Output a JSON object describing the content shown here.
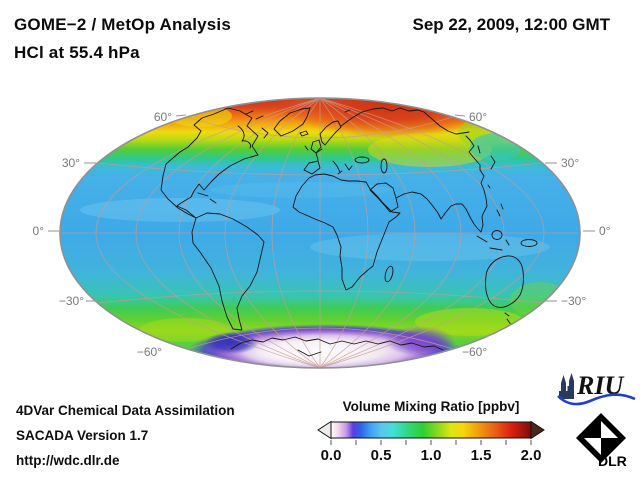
{
  "header": {
    "title_line1": "GOME−2 / MetOp Analysis",
    "title_line2": "HCl at 55.4 hPa",
    "date": "Sep 22, 2009, 12:00 GMT"
  },
  "map": {
    "lat_labels_left": [
      "60°",
      "30°",
      "0°",
      "−30°",
      "−60°"
    ],
    "lat_labels_right": [
      "60°",
      "30°",
      "0°",
      "−30°",
      "−60°"
    ]
  },
  "colorbar": {
    "title": "Volume Mixing Ratio [ppbv]",
    "tick_labels": [
      "0.0",
      "0.5",
      "1.0",
      "1.5",
      "2.0"
    ],
    "stops": [
      {
        "v": 0.0,
        "color": "#ffffff"
      },
      {
        "v": 0.07,
        "color": "#f2d7ee"
      },
      {
        "v": 0.15,
        "color": "#c79ae8"
      },
      {
        "v": 0.22,
        "color": "#5a3fe0"
      },
      {
        "v": 0.3,
        "color": "#2f63ea"
      },
      {
        "v": 0.4,
        "color": "#3fa4ee"
      },
      {
        "v": 0.5,
        "color": "#59c5ef"
      },
      {
        "v": 0.62,
        "color": "#45dfd9"
      },
      {
        "v": 0.75,
        "color": "#2fd98c"
      },
      {
        "v": 0.92,
        "color": "#2fcf2f"
      },
      {
        "v": 1.05,
        "color": "#7ed71c"
      },
      {
        "v": 1.2,
        "color": "#dce612"
      },
      {
        "v": 1.32,
        "color": "#f6d60e"
      },
      {
        "v": 1.5,
        "color": "#f0930f"
      },
      {
        "v": 1.65,
        "color": "#e85c15"
      },
      {
        "v": 1.8,
        "color": "#dc2111"
      },
      {
        "v": 2.0,
        "color": "#7c0f06"
      }
    ]
  },
  "footer": {
    "line1": "4DVar Chemical Data Assimilation",
    "line2": "SACADA Version 1.7",
    "line3": "http://wdc.dlr.de"
  },
  "logos": {
    "riu_text": "RIU",
    "dlr_text": "DLR"
  },
  "chart_data": {
    "type": "heatmap",
    "title": "GOME−2 / MetOp Analysis",
    "subtitle": "HCl at 55.4 hPa",
    "timestamp": "Sep 22, 2009, 12:00 GMT",
    "projection": "elliptical world map (Hammer/Mollweide style), central meridian 0°",
    "graticule_lat_deg": [
      60,
      30,
      0,
      -30,
      -60
    ],
    "graticule_lon_step_deg": 30,
    "colorbar": {
      "label": "Volume Mixing Ratio [ppbv]",
      "min": 0.0,
      "max": 2.0,
      "ticks": [
        0.0,
        0.5,
        1.0,
        1.5,
        2.0
      ],
      "minor_tick_step": 0.25,
      "out_of_range_arrows": "both ends"
    },
    "zonal_mean_ppbv": {
      "lat": [
        90,
        80,
        70,
        60,
        50,
        40,
        30,
        20,
        10,
        0,
        -10,
        -20,
        -30,
        -40,
        -50,
        -60,
        -70,
        -80,
        -90
      ],
      "value": [
        1.95,
        1.85,
        1.6,
        1.35,
        1.05,
        0.8,
        0.65,
        0.6,
        0.58,
        0.6,
        0.6,
        0.62,
        0.7,
        0.95,
        1.1,
        1.0,
        0.45,
        0.15,
        0.1
      ]
    },
    "features": [
      "Arctic maximum ~1.8-2.0 ppbv (red) centered near pole, slightly east of Greenwich",
      "orange-yellow transition band 55-70N",
      "uniform light-blue tropics ~0.55-0.65 ppbv between 30N and 30S",
      "green band ~0.9-1.1 ppbv with yellow-green patches 35-60S",
      "Antarctic minimum <0.2 ppbv (pale/white) ringed by purple 0.25-0.4 ppbv and blue-violet patches"
    ]
  }
}
